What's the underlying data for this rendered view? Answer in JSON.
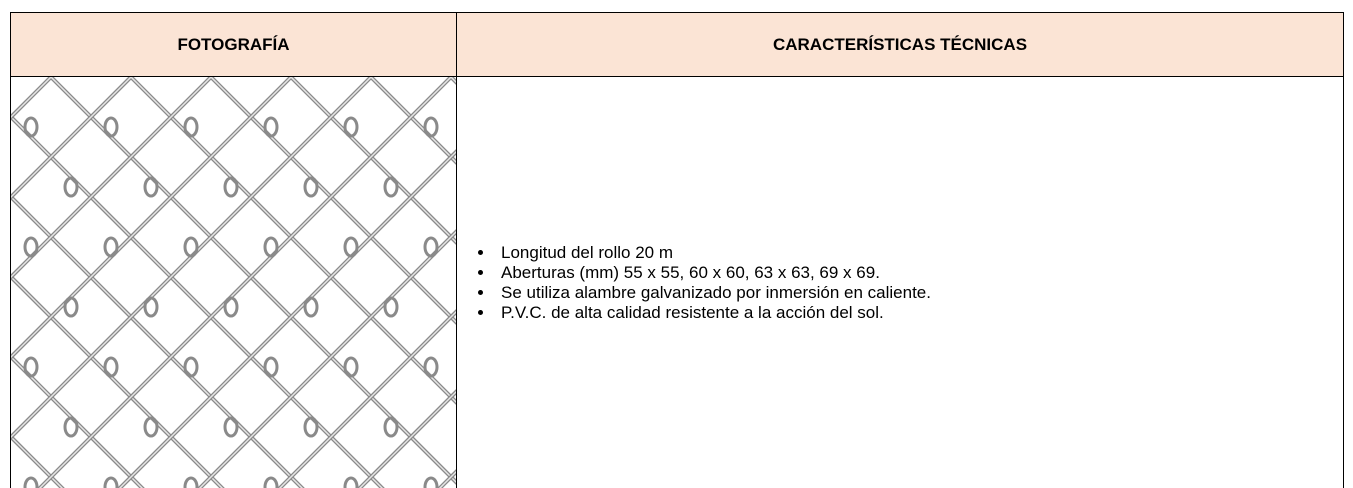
{
  "table": {
    "header": [
      "FOTOGRAFÍA",
      "CARACTERÍSTICAS TÉCNICAS"
    ],
    "features": [
      "Longitud del rollo 20 m",
      "Aberturas (mm) 55 x 55, 60 x 60, 63 x 63, 69 x 69.",
      "Se utiliza alambre galvanizado por inmersión en caliente.",
      "P.V.C. de alta calidad resistente a la acción del sol."
    ]
  }
}
